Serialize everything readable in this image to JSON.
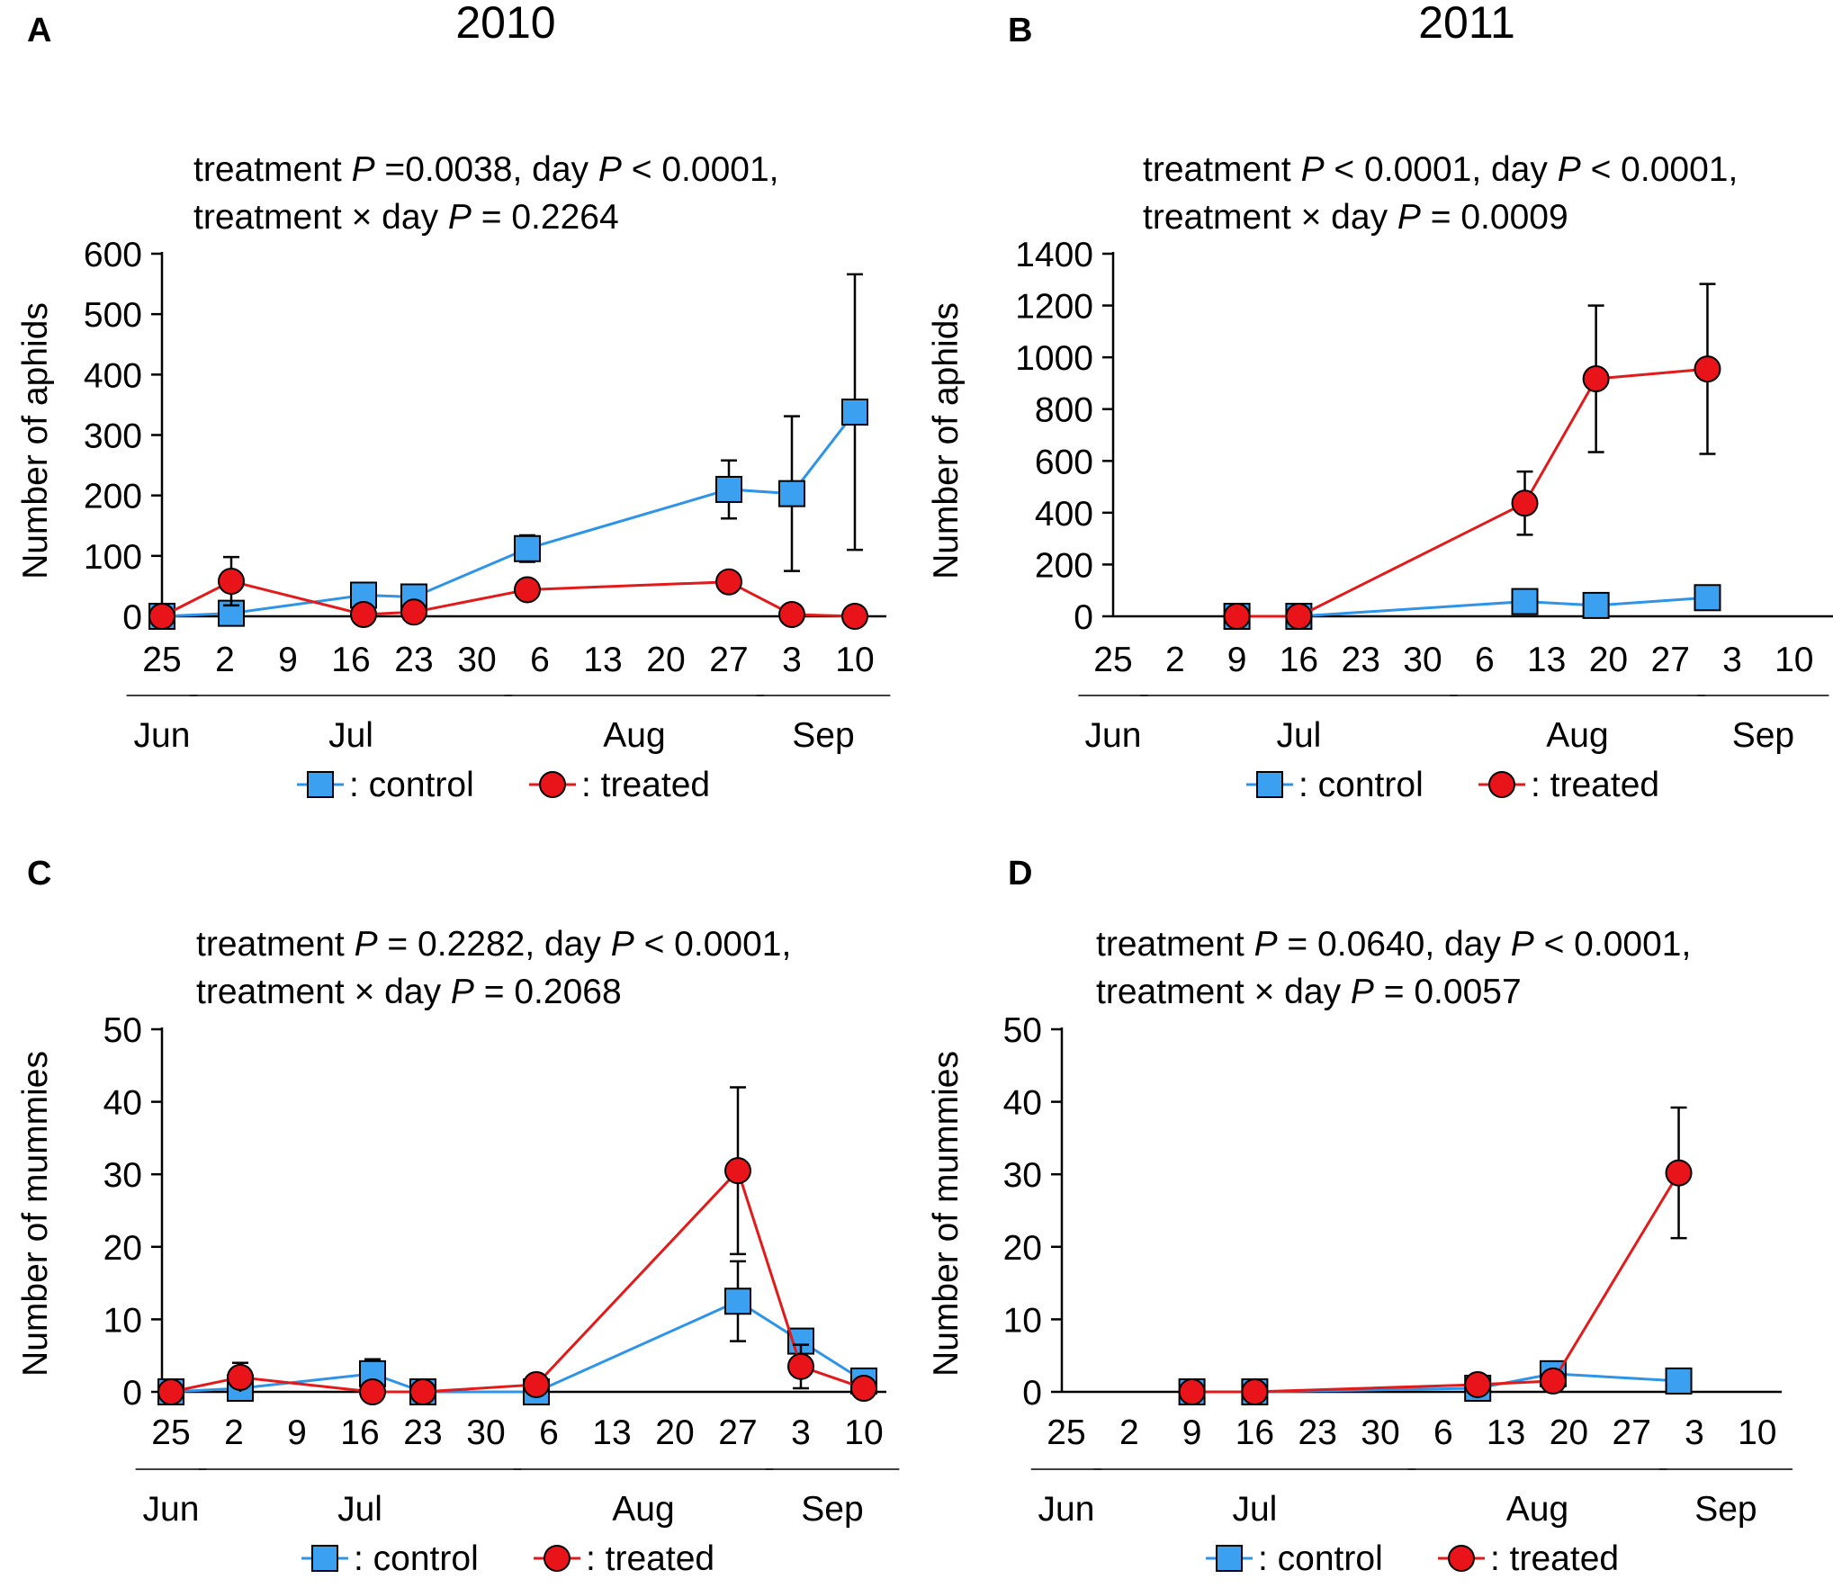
{
  "colors": {
    "control": "#2E94E8",
    "control_fill": "#3BA0F0",
    "treated": "#E21A1A",
    "treated_fill": "#E8141A",
    "axis": "#000000",
    "error": "#000000"
  },
  "legend": {
    "control": ": control",
    "treated": ": treated"
  },
  "chart_data": [
    {
      "panel": "A",
      "type": "line",
      "title": "2010",
      "stat_line1": [
        "treatment ",
        "P",
        " =0.0038, day ",
        "P",
        " < 0.0001,"
      ],
      "stat_line2": [
        "treatment  ×  day ",
        "P",
        " = 0.2264"
      ],
      "ylabel": "Number of aphids",
      "ylim": [
        0,
        600
      ],
      "yticks": [
        0,
        100,
        200,
        300,
        400,
        500,
        600
      ],
      "x_categories": [
        "25",
        "2",
        "9",
        "16",
        "23",
        "30",
        "6",
        "13",
        "20",
        "27",
        "3",
        "10"
      ],
      "months": [
        {
          "label": "Jun",
          "from": 0,
          "to": 0
        },
        {
          "label": "Jul",
          "from": 1,
          "to": 5
        },
        {
          "label": "Aug",
          "from": 6,
          "to": 9
        },
        {
          "label": "Sep",
          "from": 10,
          "to": 11
        }
      ],
      "series": [
        {
          "name": "control",
          "marker": "square",
          "x": [
            0,
            1.1,
            3.2,
            4.0,
            5.8,
            9.0,
            10.0,
            11.0
          ],
          "y": [
            0,
            5,
            35,
            32,
            112,
            210,
            203,
            338
          ],
          "err": [
            0,
            0,
            15,
            0,
            22,
            48,
            128,
            228
          ]
        },
        {
          "name": "treated",
          "marker": "circle",
          "x": [
            0,
            1.1,
            3.2,
            4.0,
            5.8,
            9.0,
            10.0,
            11.0
          ],
          "y": [
            0,
            58,
            3,
            7,
            44,
            57,
            3,
            0
          ],
          "err": [
            0,
            40,
            0,
            0,
            0,
            0,
            0,
            0
          ]
        }
      ]
    },
    {
      "panel": "B",
      "type": "line",
      "title": "2011",
      "stat_line1": [
        "treatment ",
        "P",
        " < 0.0001, day ",
        "P",
        " < 0.0001,"
      ],
      "stat_line2": [
        "treatment  ×  day ",
        "P",
        " = 0.0009"
      ],
      "ylabel": "Number of aphids",
      "ylim": [
        0,
        1400
      ],
      "yticks": [
        0,
        200,
        400,
        600,
        800,
        1000,
        1200,
        1400
      ],
      "x_categories": [
        "25",
        "2",
        "9",
        "16",
        "23",
        "30",
        "6",
        "13",
        "20",
        "27",
        "3",
        "10"
      ],
      "months": [
        {
          "label": "Jun",
          "from": 0,
          "to": 0
        },
        {
          "label": "Jul",
          "from": 1,
          "to": 5
        },
        {
          "label": "Aug",
          "from": 6,
          "to": 9
        },
        {
          "label": "Sep",
          "from": 10,
          "to": 11
        }
      ],
      "series": [
        {
          "name": "control",
          "marker": "square",
          "x": [
            2.0,
            3.0,
            6.65,
            7.8,
            9.6
          ],
          "y": [
            0,
            0,
            57,
            42,
            72
          ],
          "err": [
            0,
            0,
            0,
            0,
            0
          ]
        },
        {
          "name": "treated",
          "marker": "circle",
          "x": [
            2.0,
            3.0,
            6.65,
            7.8,
            9.6
          ],
          "y": [
            0,
            0,
            437,
            917,
            955
          ],
          "err": [
            0,
            0,
            122,
            283,
            328
          ]
        }
      ]
    },
    {
      "panel": "C",
      "type": "line",
      "title": "",
      "stat_line1": [
        "treatment ",
        "P",
        " = 0.2282, day ",
        "P",
        " < 0.0001,"
      ],
      "stat_line2": [
        "treatment  ×  day ",
        "P",
        " = 0.2068"
      ],
      "ylabel": "Number of mummies",
      "ylim": [
        0,
        50
      ],
      "yticks": [
        0,
        10,
        20,
        30,
        40,
        50
      ],
      "x_categories": [
        "25",
        "2",
        "9",
        "16",
        "23",
        "30",
        "6",
        "13",
        "20",
        "27",
        "3",
        "10"
      ],
      "months": [
        {
          "label": "Jun",
          "from": 0,
          "to": 0
        },
        {
          "label": "Jul",
          "from": 1,
          "to": 5
        },
        {
          "label": "Aug",
          "from": 6,
          "to": 9
        },
        {
          "label": "Sep",
          "from": 10,
          "to": 11
        }
      ],
      "series": [
        {
          "name": "control",
          "marker": "square",
          "x": [
            0,
            1.1,
            3.2,
            4.0,
            5.8,
            9.0,
            10.0,
            11.0
          ],
          "y": [
            0,
            0.5,
            2.5,
            0,
            0,
            12.5,
            7,
            1.5
          ],
          "err": [
            0,
            0,
            2,
            0,
            0,
            5.5,
            1.5,
            0
          ]
        },
        {
          "name": "treated",
          "marker": "circle",
          "x": [
            0,
            1.1,
            3.2,
            4.0,
            5.8,
            9.0,
            10.0,
            11.0
          ],
          "y": [
            0,
            2,
            0,
            0,
            1,
            30.5,
            3.5,
            0.5
          ],
          "err": [
            0,
            2,
            0,
            0,
            0,
            11.5,
            3,
            0
          ]
        }
      ]
    },
    {
      "panel": "D",
      "type": "line",
      "title": "",
      "stat_line1": [
        "treatment ",
        "P",
        " = 0.0640, day ",
        "P",
        " < 0.0001,"
      ],
      "stat_line2": [
        "treatment  ×  day ",
        "P",
        " = 0.0057"
      ],
      "ylabel": "Number of mummies",
      "ylim": [
        0,
        50
      ],
      "yticks": [
        0,
        10,
        20,
        30,
        40,
        50
      ],
      "x_categories": [
        "25",
        "2",
        "9",
        "16",
        "23",
        "30",
        "6",
        "13",
        "20",
        "27",
        "3",
        "10"
      ],
      "months": [
        {
          "label": "Jun",
          "from": 0,
          "to": 0
        },
        {
          "label": "Jul",
          "from": 1,
          "to": 5
        },
        {
          "label": "Aug",
          "from": 6,
          "to": 9
        },
        {
          "label": "Sep",
          "from": 10,
          "to": 11
        }
      ],
      "series": [
        {
          "name": "control",
          "marker": "square",
          "x": [
            2.0,
            3.0,
            6.55,
            7.75,
            9.75
          ],
          "y": [
            0,
            0,
            0.5,
            2.5,
            1.5
          ],
          "err": [
            0,
            0,
            0,
            0,
            0
          ]
        },
        {
          "name": "treated",
          "marker": "circle",
          "x": [
            2.0,
            3.0,
            6.55,
            7.75,
            9.75
          ],
          "y": [
            0,
            0,
            1,
            1.5,
            30.2
          ],
          "err": [
            0,
            0,
            0,
            0,
            9
          ]
        }
      ]
    }
  ]
}
